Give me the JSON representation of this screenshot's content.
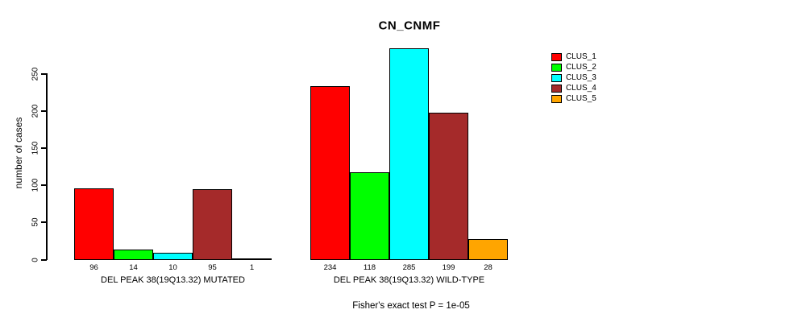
{
  "chart_data": {
    "type": "bar",
    "title": "CN_CNMF",
    "ylabel": "number of cases",
    "annotation": "Fisher's exact test P = 1e-05",
    "ylim": [
      0,
      290
    ],
    "yticks": [
      0,
      50,
      100,
      150,
      200,
      250
    ],
    "grid": false,
    "legend_position": "right",
    "bar_value_labels": true,
    "series": [
      {
        "name": "CLUS_1",
        "color": "#FF0000"
      },
      {
        "name": "CLUS_2",
        "color": "#00FF00"
      },
      {
        "name": "CLUS_3",
        "color": "#00FFFF"
      },
      {
        "name": "CLUS_4",
        "color": "#A52A2A"
      },
      {
        "name": "CLUS_5",
        "color": "#FFA500"
      }
    ],
    "groups": [
      {
        "label": "DEL PEAK 38(19Q13.32) MUTATED",
        "values": [
          96,
          14,
          10,
          95,
          1
        ]
      },
      {
        "label": "DEL PEAK 38(19Q13.32) WILD-TYPE",
        "values": [
          234,
          118,
          285,
          199,
          28
        ]
      }
    ]
  }
}
